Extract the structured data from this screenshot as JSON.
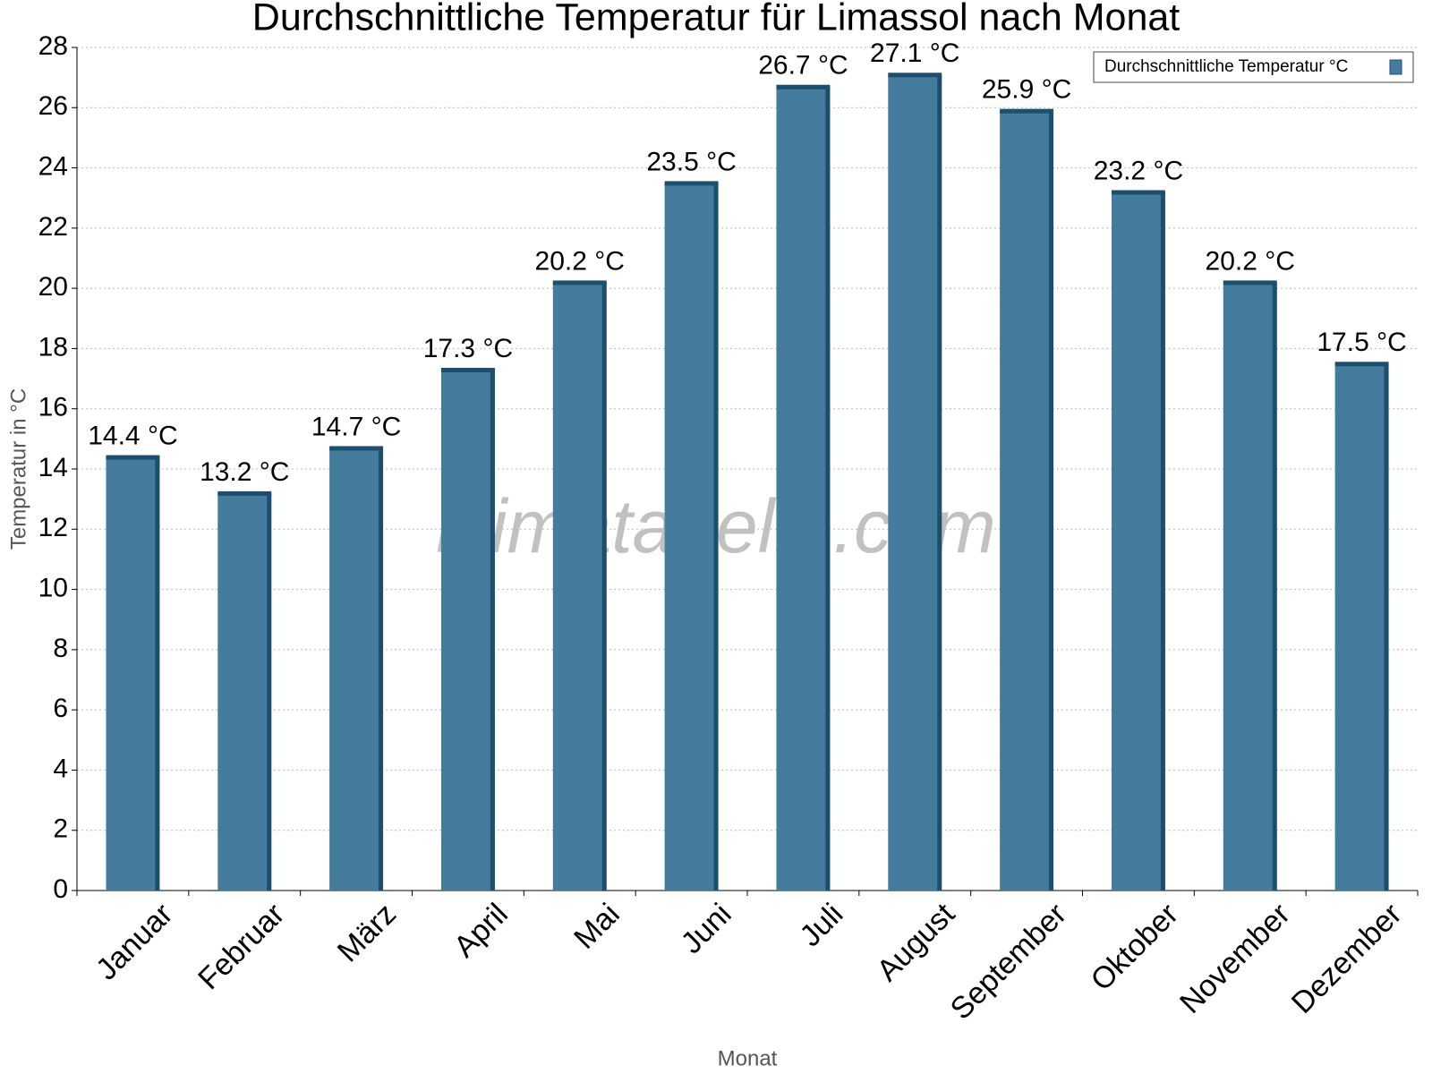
{
  "chart_data": {
    "type": "bar",
    "title": "Durchschnittliche Temperatur für Limassol nach Monat",
    "x_label": "Monat",
    "y_label": "Temperatur in °C",
    "watermark": "klimatabelle.com",
    "categories": [
      "Januar",
      "Februar",
      "März",
      "April",
      "Mai",
      "Juni",
      "Juli",
      "August",
      "September",
      "Oktober",
      "November",
      "Dezember"
    ],
    "series": [
      {
        "name": "Durchschnittliche Temperatur °C",
        "color": "#457b9d",
        "values": [
          14.4,
          13.2,
          14.7,
          17.3,
          20.2,
          23.5,
          26.7,
          27.1,
          25.9,
          23.2,
          20.2,
          17.5
        ],
        "value_labels": [
          "14.4 °C",
          "13.2 °C",
          "14.7 °C",
          "17.3 °C",
          "20.2 °C",
          "23.5 °C",
          "26.7 °C",
          "27.1 °C",
          "25.9 °C",
          "23.2 °C",
          "20.2 °C",
          "17.5 °C"
        ]
      }
    ],
    "ylim": [
      0,
      28
    ],
    "yticks": [
      0,
      2,
      4,
      6,
      8,
      10,
      12,
      14,
      16,
      18,
      20,
      22,
      24,
      26,
      28
    ],
    "grid": true,
    "legend": "top-right"
  }
}
